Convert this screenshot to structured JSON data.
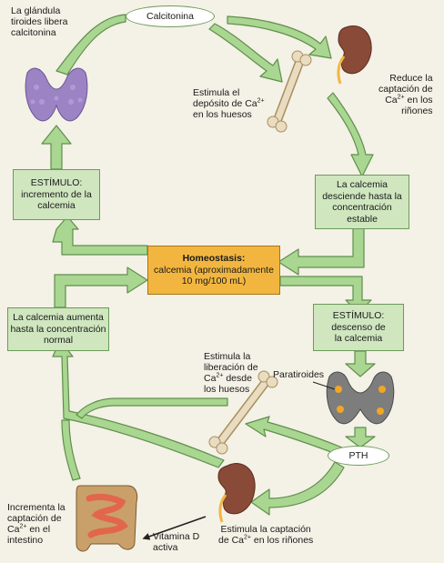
{
  "labels": {
    "thyroid_releases": "La glándula\ntiroides libera\ncalcitonina",
    "calcitonin": "Calcitonina",
    "bone_deposit_pre": "Estimula el\ndepósito de Ca",
    "bone_deposit_post": "\nen los huesos",
    "kidney_reduce_pre": "Reduce la\ncaptación de\nCa",
    "kidney_reduce_post": " en los\nriñones",
    "bone_release_pre": "Estimula la\nliberación de\nCa",
    "bone_release_post": " desde\nlos huesos",
    "parathyroids": "Paratiroides",
    "pth": "PTH",
    "intestine_pre": "Incrementa la\ncaptación de\nCa",
    "intestine_post": " en el\nintestino",
    "vitamin_d": "Vitamina D\nactiva",
    "kidney_uptake_pre": "Estimula la captación\nde Ca",
    "kidney_uptake_post": " en los riñones",
    "charge": "2+"
  },
  "boxes": {
    "stimulus_increase_title": "ESTÍMULO:",
    "stimulus_increase_text": "incremento de la\ncalcemia",
    "calcemia_descends": "La calcemia\ndesciende hasta la\nconcentración\nestable",
    "homeostasis_title": "Homeostasis:",
    "homeostasis_text": "calcemia (aproximadamente\n10 mg/100 mL)",
    "calcemia_rises": "La calcemia aumenta\nhasta la concentración\nnormal",
    "stimulus_decrease_title": "ESTÍMULO:",
    "stimulus_decrease_text": "descenso de\nla calcemia"
  },
  "colors": {
    "arrow_fill": "#a9d690",
    "arrow_stroke": "#5f8f4c",
    "box_fill": "#cfe6bf",
    "homeostasis_fill": "#f2b640",
    "thyroid": "#9b83c4",
    "kidney": "#8a4a38",
    "bone": "#e9dcc0",
    "intestine": "#e2674a",
    "parathyroid_dots": "#f2a623"
  }
}
